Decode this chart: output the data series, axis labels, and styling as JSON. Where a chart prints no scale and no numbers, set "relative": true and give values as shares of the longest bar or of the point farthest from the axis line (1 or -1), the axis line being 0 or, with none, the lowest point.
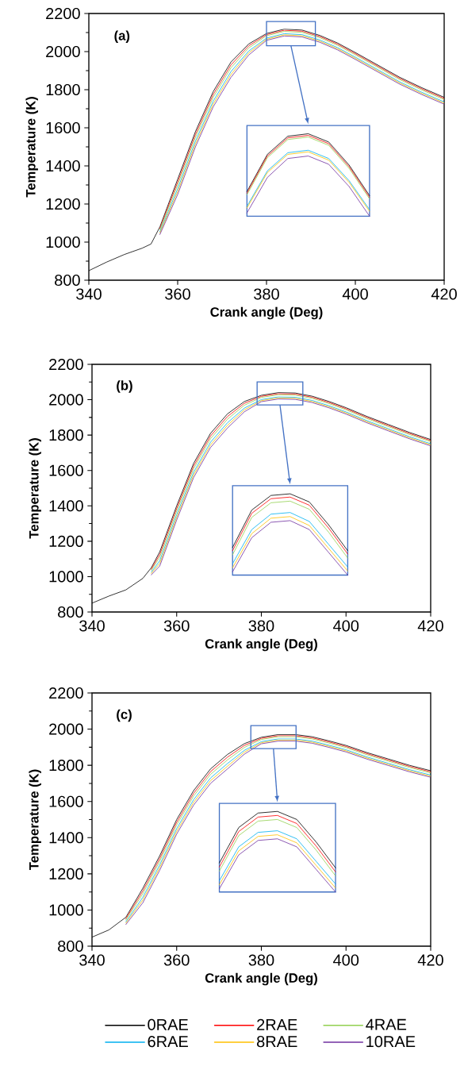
{
  "chart_data": [
    {
      "type": "line",
      "title": "(a)",
      "xlabel": "Crank angle (Deg)",
      "ylabel": "Temperature (K)",
      "x": [
        340,
        344,
        348,
        352,
        354,
        356,
        360,
        364,
        368,
        372,
        376,
        380,
        384,
        388,
        392,
        396,
        400,
        405,
        410,
        415,
        420
      ],
      "xlim": [
        340,
        420
      ],
      "ylim": [
        800,
        2200
      ],
      "xticks": [
        340,
        360,
        380,
        400,
        420
      ],
      "yticks": [
        800,
        1000,
        1200,
        1400,
        1600,
        1800,
        2000,
        2200
      ],
      "series": [
        {
          "color": "#000000",
          "values": [
            850,
            895,
            935,
            968,
            990,
            1080,
            1330,
            1580,
            1790,
            1945,
            2040,
            2095,
            2118,
            2113,
            2085,
            2045,
            1995,
            1930,
            1865,
            1810,
            1760
          ]
        },
        {
          "color": "#ff0000",
          "values": [
            null,
            null,
            null,
            null,
            null,
            1072,
            1315,
            1565,
            1775,
            1930,
            2030,
            2089,
            2112,
            2107,
            2079,
            2039,
            1989,
            1924,
            1859,
            1804,
            1754
          ]
        },
        {
          "color": "#92d050",
          "values": [
            null,
            null,
            null,
            null,
            null,
            1065,
            1300,
            1550,
            1760,
            1915,
            2019,
            2083,
            2106,
            2101,
            2073,
            2033,
            1983,
            1918,
            1853,
            1798,
            1748
          ]
        },
        {
          "color": "#00b0f0",
          "values": [
            null,
            null,
            null,
            null,
            null,
            1055,
            1280,
            1530,
            1740,
            1895,
            2003,
            2071,
            2094,
            2089,
            2061,
            2021,
            1971,
            1906,
            1841,
            1786,
            1736
          ]
        },
        {
          "color": "#ffc000",
          "values": [
            null,
            null,
            null,
            null,
            null,
            1048,
            1265,
            1515,
            1725,
            1880,
            1993,
            2065,
            2088,
            2083,
            2055,
            2015,
            1965,
            1900,
            1835,
            1780,
            1730
          ]
        },
        {
          "color": "#7030a0",
          "values": [
            null,
            null,
            null,
            null,
            null,
            1040,
            1250,
            1500,
            1710,
            1865,
            1982,
            2059,
            2082,
            2077,
            2049,
            2009,
            1959,
            1894,
            1829,
            1774,
            1724
          ]
        }
      ]
    },
    {
      "type": "line",
      "relative": true,
      "categories": [
        null,
        null,
        null,
        null,
        null,
        null,
        null
      ],
      "series": [
        {
          "color": "#000000",
          "values": [
            0.3,
            0.75,
            0.97,
            1,
            0.9,
            0.62,
            0.25
          ]
        },
        {
          "color": "#ff0000",
          "values": [
            0.28,
            0.73,
            0.95,
            0.98,
            0.88,
            0.6,
            0.23
          ]
        },
        {
          "color": "#92d050",
          "values": [
            0.26,
            0.71,
            0.93,
            0.96,
            0.86,
            0.58,
            0.21
          ]
        },
        {
          "color": "#00b0f0",
          "values": [
            0.12,
            0.55,
            0.77,
            0.8,
            0.7,
            0.43,
            0.08
          ]
        },
        {
          "color": "#ffc000",
          "values": [
            0.1,
            0.53,
            0.75,
            0.78,
            0.68,
            0.41,
            0.06
          ]
        },
        {
          "color": "#7030a0",
          "values": [
            0.04,
            0.47,
            0.7,
            0.73,
            0.63,
            0.36,
            0
          ]
        }
      ]
    },
    {
      "type": "line",
      "title": "(b)",
      "xlabel": "Crank angle (Deg)",
      "ylabel": "Temperature (K)",
      "x": [
        340,
        344,
        348,
        352,
        354,
        356,
        360,
        364,
        368,
        372,
        376,
        380,
        384,
        388,
        392,
        396,
        400,
        405,
        410,
        415,
        420
      ],
      "xlim": [
        340,
        420
      ],
      "ylim": [
        800,
        2200
      ],
      "xticks": [
        340,
        360,
        380,
        400,
        420
      ],
      "yticks": [
        800,
        1000,
        1200,
        1400,
        1600,
        1800,
        2000,
        2200
      ],
      "series": [
        {
          "color": "#000000",
          "values": [
            850,
            890,
            925,
            990,
            1050,
            1140,
            1400,
            1640,
            1810,
            1920,
            1990,
            2025,
            2040,
            2038,
            2020,
            1990,
            1955,
            1905,
            1860,
            1815,
            1775
          ]
        },
        {
          "color": "#ff0000",
          "values": [
            null,
            null,
            null,
            null,
            1042,
            1125,
            1385,
            1625,
            1795,
            1905,
            1980,
            2019,
            2034,
            2032,
            2014,
            1984,
            1949,
            1899,
            1854,
            1809,
            1769
          ]
        },
        {
          "color": "#92d050",
          "values": [
            null,
            null,
            null,
            null,
            1035,
            1110,
            1370,
            1610,
            1780,
            1890,
            1969,
            2013,
            2028,
            2026,
            2008,
            1978,
            1943,
            1893,
            1848,
            1803,
            1763
          ]
        },
        {
          "color": "#00b0f0",
          "values": [
            null,
            null,
            null,
            null,
            1025,
            1090,
            1350,
            1590,
            1760,
            1870,
            1953,
            2001,
            2016,
            2014,
            1996,
            1966,
            1931,
            1881,
            1836,
            1791,
            1751
          ]
        },
        {
          "color": "#ffc000",
          "values": [
            null,
            null,
            null,
            null,
            1018,
            1075,
            1335,
            1575,
            1745,
            1855,
            1943,
            1995,
            2010,
            2008,
            1990,
            1960,
            1925,
            1875,
            1830,
            1785,
            1745
          ]
        },
        {
          "color": "#7030a0",
          "values": [
            null,
            null,
            null,
            null,
            1010,
            1060,
            1320,
            1560,
            1730,
            1840,
            1932,
            1989,
            2004,
            2002,
            1984,
            1954,
            1919,
            1869,
            1824,
            1779,
            1739
          ]
        }
      ]
    },
    {
      "type": "line",
      "relative": true,
      "categories": [
        null,
        null,
        null,
        null,
        null,
        null,
        null
      ],
      "series": [
        {
          "color": "#000000",
          "values": [
            0.34,
            0.8,
            0.98,
            1,
            0.9,
            0.62,
            0.3
          ]
        },
        {
          "color": "#ff0000",
          "values": [
            0.3,
            0.76,
            0.94,
            0.96,
            0.86,
            0.58,
            0.26
          ]
        },
        {
          "color": "#92d050",
          "values": [
            0.25,
            0.71,
            0.89,
            0.91,
            0.81,
            0.53,
            0.21
          ]
        },
        {
          "color": "#00b0f0",
          "values": [
            0.14,
            0.56,
            0.75,
            0.77,
            0.66,
            0.38,
            0.1
          ]
        },
        {
          "color": "#ffc000",
          "values": [
            0.09,
            0.51,
            0.7,
            0.72,
            0.61,
            0.33,
            0.05
          ]
        },
        {
          "color": "#7030a0",
          "values": [
            0.04,
            0.46,
            0.65,
            0.67,
            0.56,
            0.28,
            0
          ]
        }
      ]
    },
    {
      "type": "line",
      "title": "(c)",
      "xlabel": "Crank angle (Deg)",
      "ylabel": "Temperature (K)",
      "x": [
        340,
        344,
        348,
        352,
        354,
        356,
        360,
        364,
        368,
        372,
        376,
        380,
        384,
        388,
        392,
        396,
        400,
        405,
        410,
        415,
        420
      ],
      "xlim": [
        340,
        420
      ],
      "ylim": [
        800,
        2200
      ],
      "xticks": [
        340,
        360,
        380,
        400,
        420
      ],
      "yticks": [
        800,
        1000,
        1200,
        1400,
        1600,
        1800,
        2000,
        2200
      ],
      "legend": "bottom",
      "series": [
        {
          "name": "0RAE",
          "color": "#000000",
          "values": [
            850,
            890,
            960,
            1120,
            1210,
            1300,
            1500,
            1660,
            1780,
            1860,
            1920,
            1955,
            1970,
            1970,
            1958,
            1935,
            1910,
            1870,
            1835,
            1800,
            1770
          ]
        },
        {
          "name": "2RAE",
          "color": "#ff0000",
          "values": [
            null,
            null,
            952,
            1105,
            1195,
            1285,
            1485,
            1645,
            1765,
            1845,
            1910,
            1949,
            1964,
            1964,
            1952,
            1929,
            1904,
            1864,
            1829,
            1794,
            1764
          ]
        },
        {
          "name": "4RAE",
          "color": "#92d050",
          "values": [
            null,
            null,
            945,
            1090,
            1180,
            1270,
            1470,
            1630,
            1750,
            1830,
            1899,
            1943,
            1958,
            1958,
            1946,
            1923,
            1898,
            1858,
            1823,
            1788,
            1758
          ]
        },
        {
          "name": "6RAE",
          "color": "#00b0f0",
          "values": [
            null,
            null,
            935,
            1070,
            1160,
            1250,
            1450,
            1610,
            1730,
            1810,
            1883,
            1931,
            1946,
            1946,
            1934,
            1911,
            1886,
            1846,
            1811,
            1776,
            1746
          ]
        },
        {
          "name": "8RAE",
          "color": "#ffc000",
          "values": [
            null,
            null,
            928,
            1055,
            1145,
            1235,
            1435,
            1595,
            1715,
            1795,
            1873,
            1925,
            1940,
            1940,
            1928,
            1905,
            1880,
            1840,
            1805,
            1770,
            1740
          ]
        },
        {
          "name": "10RAE",
          "color": "#7030a0",
          "values": [
            null,
            null,
            920,
            1040,
            1130,
            1220,
            1420,
            1580,
            1700,
            1780,
            1862,
            1919,
            1934,
            1934,
            1922,
            1899,
            1874,
            1834,
            1799,
            1764,
            1734
          ]
        }
      ]
    },
    {
      "type": "line",
      "relative": true,
      "categories": [
        null,
        null,
        null,
        null,
        null,
        null,
        null
      ],
      "series": [
        {
          "color": "#000000",
          "values": [
            0.36,
            0.8,
            0.98,
            1,
            0.9,
            0.62,
            0.3
          ]
        },
        {
          "color": "#ff0000",
          "values": [
            0.31,
            0.75,
            0.93,
            0.95,
            0.85,
            0.57,
            0.25
          ]
        },
        {
          "color": "#92d050",
          "values": [
            0.26,
            0.7,
            0.88,
            0.9,
            0.8,
            0.52,
            0.2
          ]
        },
        {
          "color": "#00b0f0",
          "values": [
            0.14,
            0.56,
            0.74,
            0.76,
            0.66,
            0.38,
            0.1
          ]
        },
        {
          "color": "#ffc000",
          "values": [
            0.09,
            0.51,
            0.69,
            0.71,
            0.61,
            0.33,
            0.05
          ]
        },
        {
          "color": "#7030a0",
          "values": [
            0.04,
            0.46,
            0.64,
            0.66,
            0.56,
            0.28,
            0
          ]
        }
      ]
    }
  ]
}
